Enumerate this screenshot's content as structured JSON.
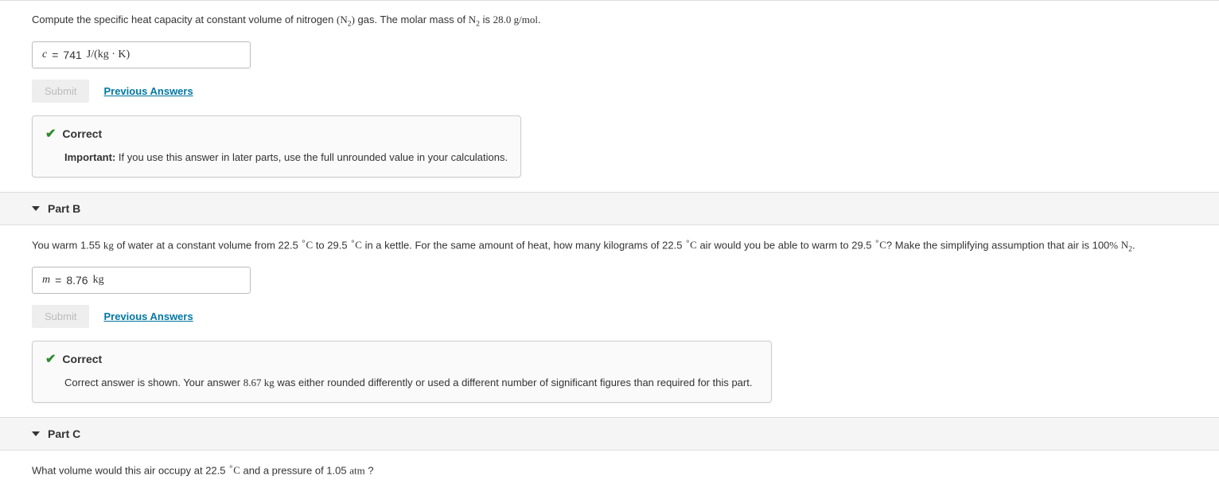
{
  "partA": {
    "question_html": "Compute the specific heat capacity at constant volume of nitrogen <span class='math'>(N<span class='sub'>2</span>)</span> gas. The molar mass of <span class='math'>N<span class='sub'>2</span></span> is <span class='math'>28.0 g/mol</span>.",
    "answer_var": "c",
    "answer_eq": "=",
    "answer_val": "741",
    "answer_unit_html": "J/(kg · K)",
    "submit_label": "Submit",
    "prev_answers_label": "Previous Answers",
    "feedback_title": "Correct",
    "feedback_body_html": "<span class='important'>Important:</span> If you use this answer in later parts, use the full unrounded value in your calculations."
  },
  "partB": {
    "title": "Part B",
    "question_html": "You warm 1.55 <span class='math'>kg</span> of water at a constant volume from 22.5 <span class='math'><span class='sup'>∘</span>C</span> to 29.5 <span class='math'><span class='sup'>∘</span>C</span> in a kettle. For the same amount of heat, how many kilograms of 22.5 <span class='math'><span class='sup'>∘</span>C</span> air would you be able to warm to 29.5 <span class='math'><span class='sup'>∘</span>C</span>? Make the simplifying assumption that air is 100<span class='math'>%</span> <span class='math'>N<span class='sub'>2</span></span>.",
    "answer_var": "m",
    "answer_eq": "=",
    "answer_val": "8.76",
    "answer_unit_html": "kg",
    "submit_label": "Submit",
    "prev_answers_label": "Previous Answers",
    "feedback_title": "Correct",
    "feedback_body_html": "Correct answer is shown. Your answer <span class='math'>8.67 kg</span> was either rounded differently or used a different number of significant figures than required for this part."
  },
  "partC": {
    "title": "Part C",
    "question_html": "What volume would this air occupy at 22.5 <span class='math'><span class='sup'>∘</span>C</span> and a pressure of 1.05 <span class='math'>atm</span> ?"
  },
  "colors": {
    "link": "#0077a3",
    "correct": "#2e8b2e",
    "header_bg": "#f5f5f5",
    "feedback_bg": "#fafafa",
    "border": "#ccc"
  }
}
